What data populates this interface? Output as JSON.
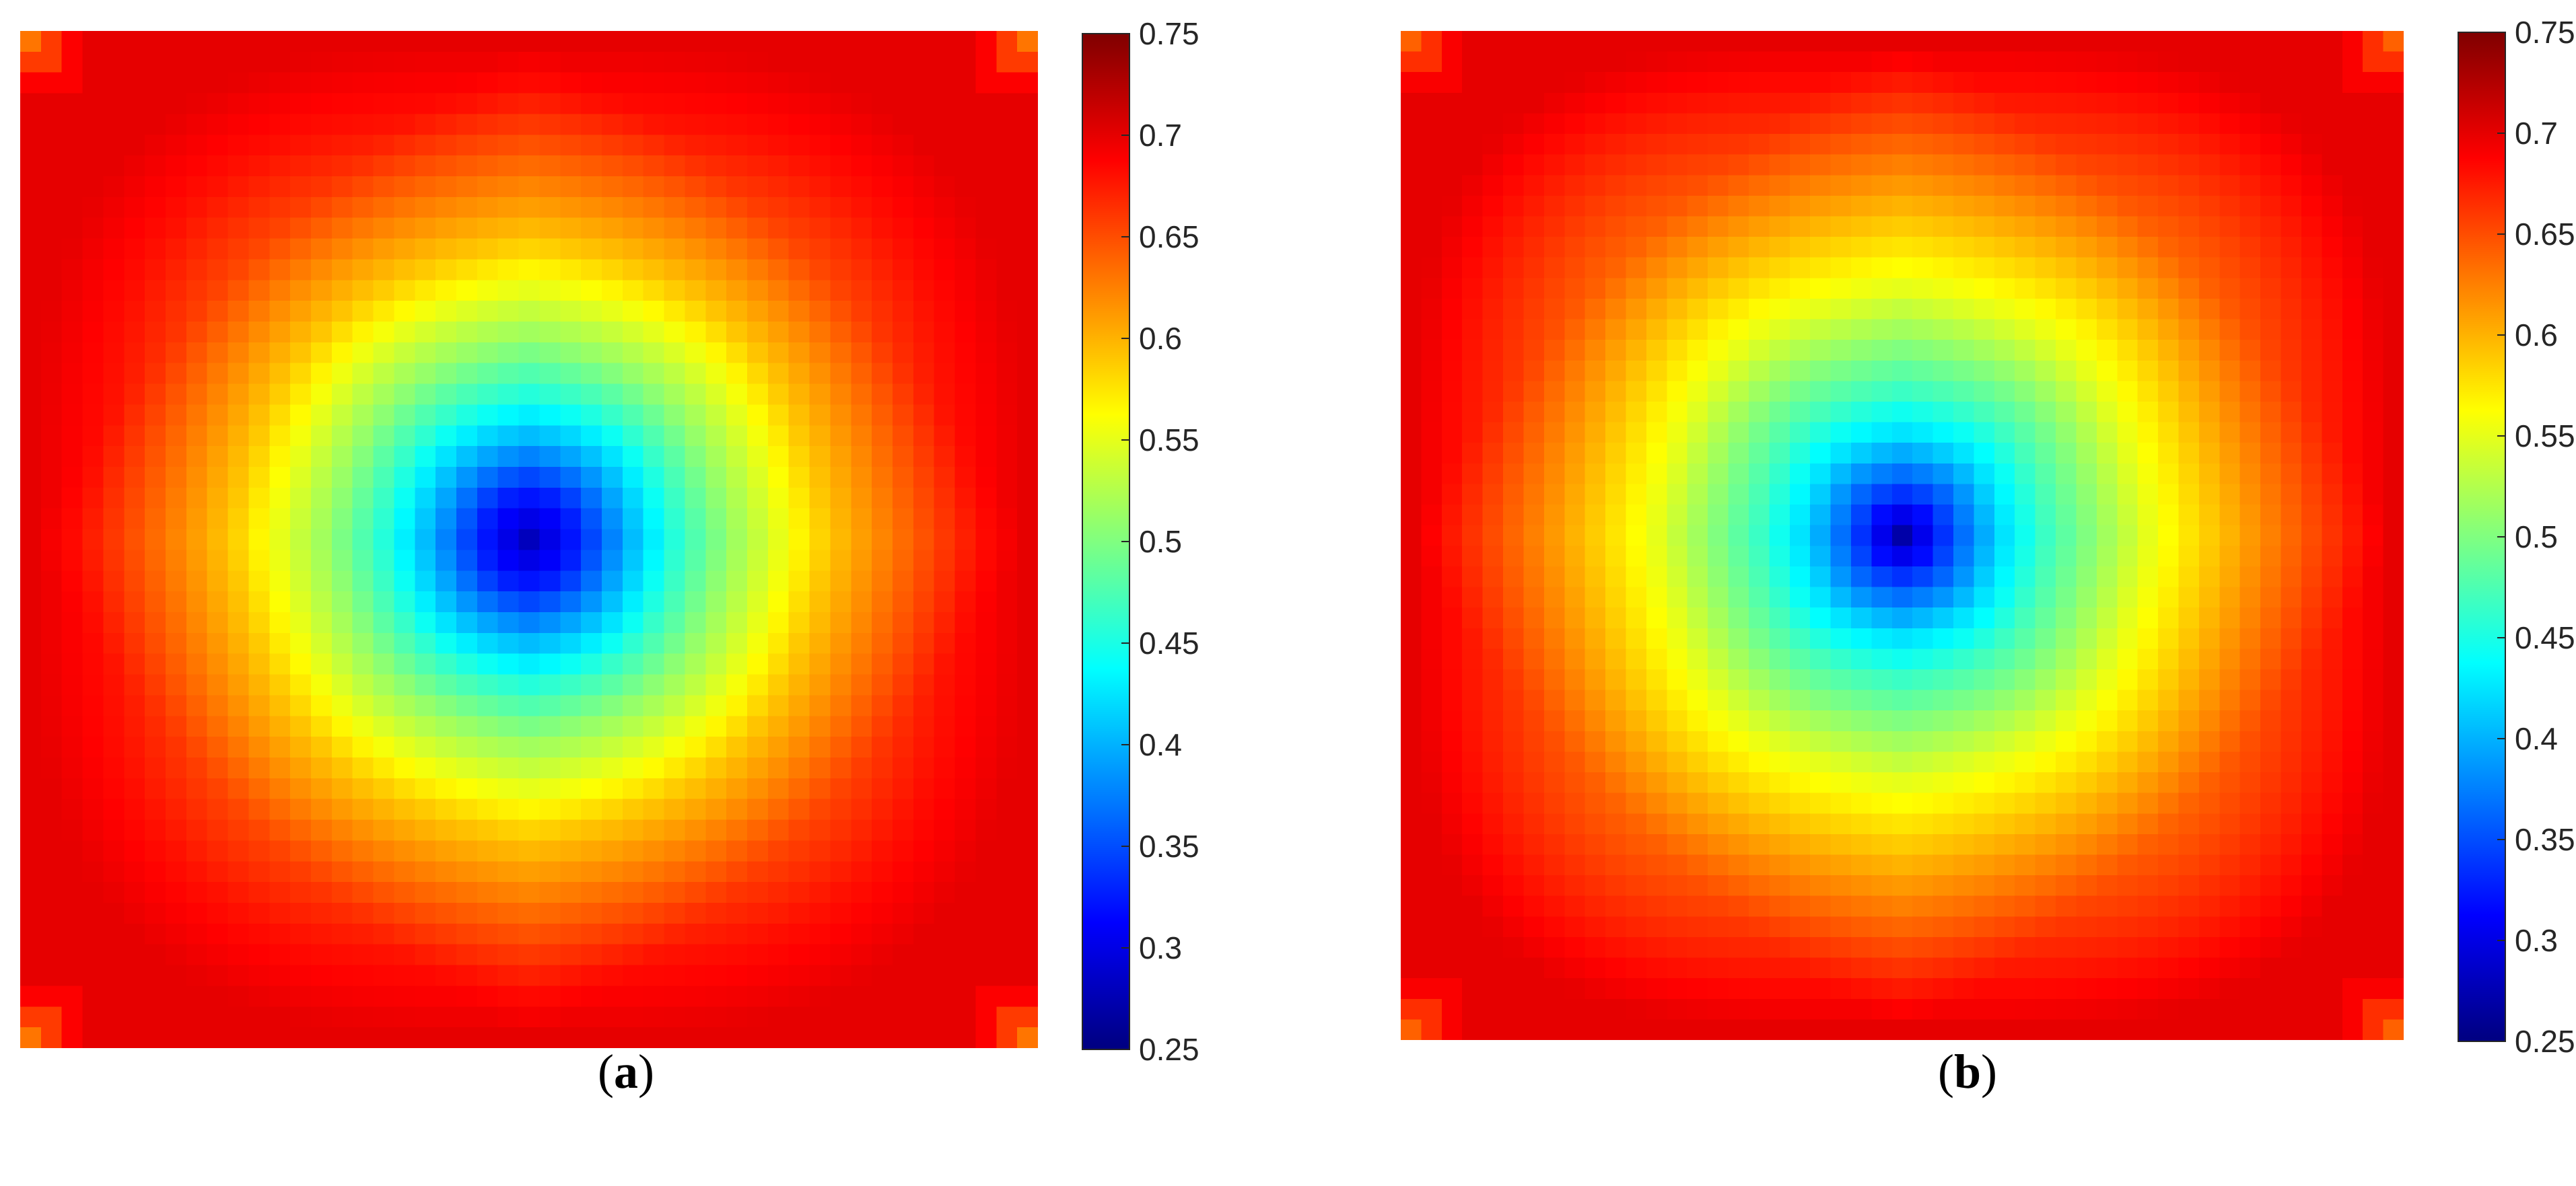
{
  "figure": {
    "panels": [
      {
        "paren_open": "(",
        "letter": "a",
        "paren_close": ")",
        "colorbar": {
          "ticks": [
            "0.25",
            "0.3",
            "0.35",
            "0.4",
            "0.45",
            "0.5",
            "0.55",
            "0.6",
            "0.65",
            "0.7",
            "0.75"
          ]
        }
      },
      {
        "paren_open": "(",
        "letter": "b",
        "paren_close": ")",
        "colorbar": {
          "ticks": [
            "0.25",
            "0.3",
            "0.35",
            "0.4",
            "0.45",
            "0.5",
            "0.55",
            "0.6",
            "0.65",
            "0.7",
            "0.75"
          ]
        }
      }
    ]
  },
  "chart_data": [
    {
      "type": "heatmap",
      "panel": "a",
      "colormap": "jet",
      "clim": [
        0.25,
        0.75
      ],
      "colorbar_ticks": [
        0.25,
        0.3,
        0.35,
        0.4,
        0.45,
        0.5,
        0.55,
        0.6,
        0.65,
        0.7,
        0.75
      ],
      "grid_size": [
        49,
        49
      ],
      "value_profile": {
        "description_values": "center minimum to edge maximum",
        "center_value": 0.28,
        "edge_value": 0.7,
        "corner_value": 0.63,
        "radial_levels": [
          0.28,
          0.33,
          0.4,
          0.46,
          0.51,
          0.55,
          0.59,
          0.62,
          0.65,
          0.68,
          0.7
        ],
        "shape_exponent": 3.0
      }
    },
    {
      "type": "heatmap",
      "panel": "b",
      "colormap": "jet",
      "clim": [
        0.25,
        0.75
      ],
      "colorbar_ticks": [
        0.25,
        0.3,
        0.35,
        0.4,
        0.45,
        0.5,
        0.55,
        0.6,
        0.65,
        0.7,
        0.75
      ],
      "grid_size": [
        49,
        49
      ],
      "value_profile": {
        "description_values": "center minimum to edge maximum",
        "center_value": 0.27,
        "edge_value": 0.7,
        "corner_value": 0.64,
        "radial_levels": [
          0.27,
          0.35,
          0.42,
          0.47,
          0.51,
          0.55,
          0.58,
          0.61,
          0.64,
          0.67,
          0.7
        ],
        "shape_exponent": 3.5
      }
    }
  ]
}
